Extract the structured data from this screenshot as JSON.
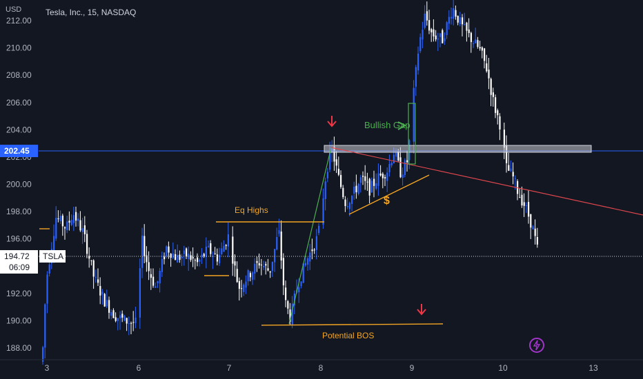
{
  "header": {
    "unit_label": "USD",
    "symbol_title": "Tesla, Inc., 15, NASDAQ"
  },
  "chart_data": {
    "type": "candlestick",
    "ylim": [
      187.2,
      212.8
    ],
    "y_ticks": [
      188,
      190,
      192,
      194,
      196,
      198,
      200,
      202,
      204,
      206,
      208,
      210,
      212
    ],
    "x_ticks": [
      "3",
      "6",
      "7",
      "8",
      "9",
      "10",
      "13"
    ],
    "price_lines": {
      "level": 202.45,
      "level_label": "202.45",
      "current": 194.72,
      "current_label": "194.72",
      "countdown": "06:09",
      "symbol": "TSLA"
    },
    "session_closes": [
      {
        "day": "3",
        "close": 196.2
      },
      {
        "day": "6",
        "close": 194.8
      },
      {
        "day": "7",
        "close": 193.6
      },
      {
        "day": "8",
        "close": 201.6
      },
      {
        "day": "9",
        "close": 209.5
      },
      {
        "day": "10",
        "close": 194.72
      }
    ],
    "annotations": [
      {
        "text": "Eq Highs",
        "price": 197.2,
        "color": "#f5a623"
      },
      {
        "text": "Bullish Gap",
        "price": 202.6,
        "color": "#4caf50"
      },
      {
        "text": "Potential BOS",
        "price": 189.8,
        "color": "#f5a623"
      },
      {
        "text": "$",
        "price": 198.2,
        "color": "#f5a623"
      }
    ],
    "colors": {
      "up": "#2962ff",
      "down": "#ffffff",
      "level_line": "#2962ff",
      "trend_line": "#e0464c",
      "support_line": "#f5a623",
      "arrow": "#f23645",
      "gap_box": "#4caf50"
    }
  }
}
